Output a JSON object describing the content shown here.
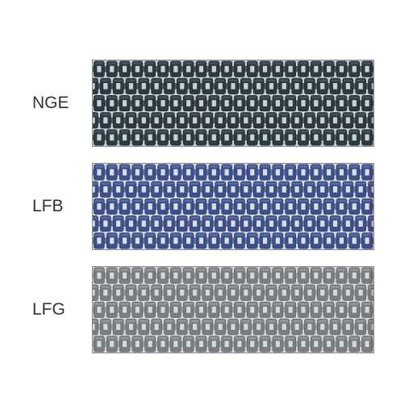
{
  "items": [
    {
      "label": "NGE",
      "dark": "#2e3a42",
      "light": "#4b5d66",
      "outline": "#1a2328",
      "bg": "#c9d1d6"
    },
    {
      "label": "LFB",
      "dark": "#3f4f8a",
      "light": "#6477ad",
      "outline": "#2b3760",
      "bg": "#d8dde8"
    },
    {
      "label": "LFG",
      "dark": "#7a7e82",
      "light": "#9ea2a6",
      "outline": "#585c60",
      "bg": "#d6d8da"
    }
  ],
  "layout": {
    "belt_width": 350,
    "belt_height": 108,
    "cols": 22,
    "rows": 5,
    "label_fontsize": 21,
    "label_color": "#333333",
    "border_color": "#888888"
  }
}
